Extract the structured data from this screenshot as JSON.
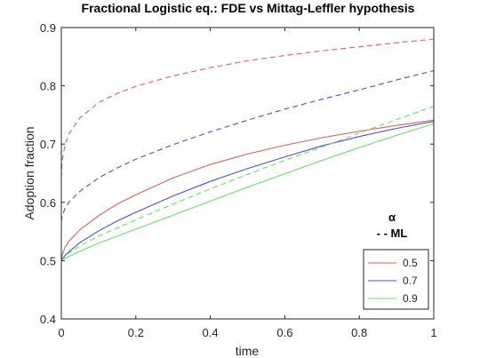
{
  "chart_data": {
    "type": "line",
    "title": "Fractional Logistic eq.: FDE vs Mittag-Leffler hypothesis",
    "xlabel": "time",
    "ylabel": "Adoption fraction",
    "xlim": [
      0,
      1
    ],
    "ylim": [
      0.4,
      0.9
    ],
    "xticks": [
      "0",
      "0.2",
      "0.4",
      "0.6",
      "0.8",
      "1"
    ],
    "yticks": [
      "0.4",
      "0.5",
      "0.6",
      "0.7",
      "0.8",
      "0.9"
    ],
    "grid": false,
    "annotation": {
      "line1": "α",
      "line2": "- - ML"
    },
    "legend": {
      "position": "bottom-right",
      "entries": [
        "0.5",
        "0.7",
        "0.9"
      ]
    },
    "x": [
      0,
      0.002,
      0.01,
      0.02,
      0.05,
      0.1,
      0.15,
      0.2,
      0.3,
      0.4,
      0.5,
      0.6,
      0.7,
      0.8,
      0.9,
      1.0
    ],
    "series": [
      {
        "name": "0.5",
        "style": "solid",
        "color": "#e06060",
        "values": [
          0.5,
          0.509,
          0.523,
          0.533,
          0.553,
          0.577,
          0.597,
          0.613,
          0.642,
          0.665,
          0.683,
          0.698,
          0.711,
          0.722,
          0.732,
          0.741
        ]
      },
      {
        "name": "0.7",
        "style": "solid",
        "color": "#4f4fcf",
        "values": [
          0.5,
          0.503,
          0.509,
          0.515,
          0.531,
          0.551,
          0.568,
          0.583,
          0.611,
          0.636,
          0.658,
          0.678,
          0.697,
          0.713,
          0.727,
          0.739
        ]
      },
      {
        "name": "0.9",
        "style": "solid",
        "color": "#66e066",
        "values": [
          0.5,
          0.501,
          0.504,
          0.507,
          0.516,
          0.53,
          0.542,
          0.554,
          0.578,
          0.602,
          0.626,
          0.649,
          0.672,
          0.694,
          0.715,
          0.735
        ]
      },
      {
        "name": "",
        "style": "dashed",
        "color": "#e06060",
        "values": [
          0.642,
          0.671,
          0.699,
          0.717,
          0.745,
          0.771,
          0.787,
          0.799,
          0.817,
          0.831,
          0.843,
          0.852,
          0.86,
          0.867,
          0.874,
          0.88
        ]
      },
      {
        "name": "",
        "style": "dashed",
        "color": "#4f4fcf",
        "values": [
          0.567,
          0.576,
          0.59,
          0.6,
          0.619,
          0.642,
          0.659,
          0.674,
          0.699,
          0.721,
          0.741,
          0.76,
          0.777,
          0.793,
          0.81,
          0.826
        ]
      },
      {
        "name": "",
        "style": "dashed",
        "color": "#66e066",
        "values": [
          0.5,
          0.502,
          0.507,
          0.513,
          0.525,
          0.542,
          0.556,
          0.57,
          0.597,
          0.623,
          0.648,
          0.672,
          0.695,
          0.719,
          0.742,
          0.765
        ]
      }
    ]
  }
}
